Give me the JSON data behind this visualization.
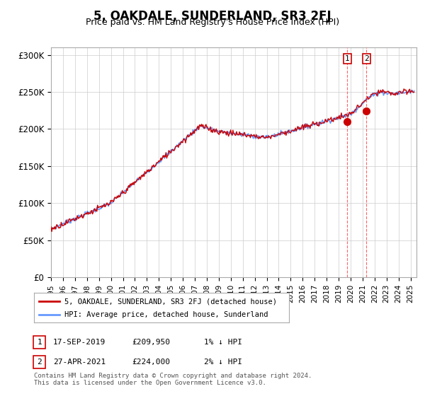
{
  "title": "5, OAKDALE, SUNDERLAND, SR3 2FJ",
  "subtitle": "Price paid vs. HM Land Registry's House Price Index (HPI)",
  "ylabel_ticks": [
    "£0",
    "£50K",
    "£100K",
    "£150K",
    "£200K",
    "£250K",
    "£300K"
  ],
  "ytick_values": [
    0,
    50000,
    100000,
    150000,
    200000,
    250000,
    300000
  ],
  "ylim": [
    0,
    310000
  ],
  "xlim_start": 1995.0,
  "xlim_end": 2025.5,
  "xticks": [
    1995,
    1996,
    1997,
    1998,
    1999,
    2000,
    2001,
    2002,
    2003,
    2004,
    2005,
    2006,
    2007,
    2008,
    2009,
    2010,
    2011,
    2012,
    2013,
    2014,
    2015,
    2016,
    2017,
    2018,
    2019,
    2020,
    2021,
    2022,
    2023,
    2024,
    2025
  ],
  "sale1_x": 2019.72,
  "sale1_y": 209950,
  "sale1_label": "1",
  "sale2_x": 2021.33,
  "sale2_y": 224000,
  "sale2_label": "2",
  "hpi_color": "#6699ff",
  "price_color": "#cc0000",
  "sale_marker_color": "#cc0000",
  "vline_color": "#ff6666",
  "background_color": "#ffffff",
  "grid_color": "#cccccc",
  "legend1_label": "5, OAKDALE, SUNDERLAND, SR3 2FJ (detached house)",
  "legend2_label": "HPI: Average price, detached house, Sunderland",
  "table_row1": [
    "1",
    "17-SEP-2019",
    "£209,950",
    "1% ↓ HPI"
  ],
  "table_row2": [
    "2",
    "27-APR-2021",
    "£224,000",
    "2% ↓ HPI"
  ],
  "footnote": "Contains HM Land Registry data © Crown copyright and database right 2024.\nThis data is licensed under the Open Government Licence v3.0."
}
